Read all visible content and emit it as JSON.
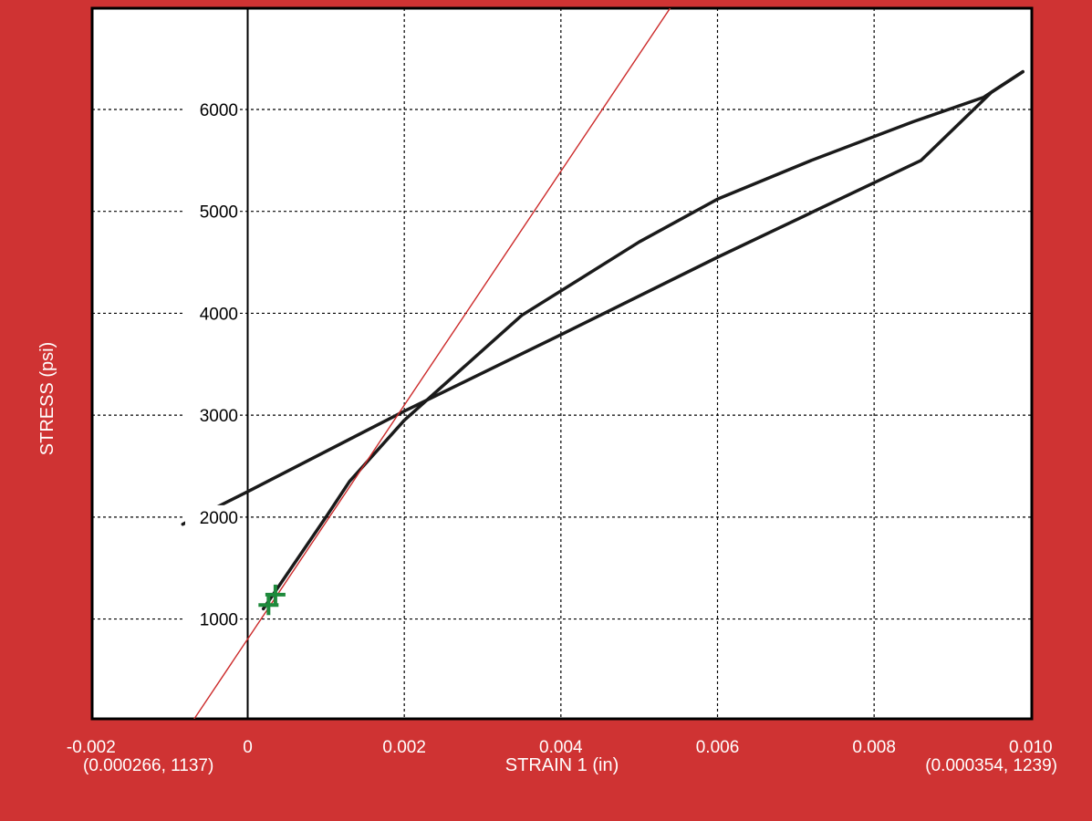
{
  "chart_data": {
    "type": "line",
    "xlabel": "STRAIN 1 (in)",
    "ylabel": "STRESS (psi)",
    "xlim": [
      -0.002,
      0.01
    ],
    "ylim": [
      0,
      7000
    ],
    "x_ticks": [
      -0.002,
      0,
      0.002,
      0.004,
      0.006,
      0.008,
      0.01
    ],
    "x_tick_labels": [
      "-0.002",
      "0",
      "0.002",
      "0.004",
      "0.006",
      "0.008",
      "0.010"
    ],
    "y_ticks": [
      1000,
      2000,
      3000,
      4000,
      5000,
      6000
    ],
    "y_tick_labels": [
      "1000",
      "2000",
      "3000",
      "4000",
      "5000",
      "6000"
    ],
    "grid": true,
    "series": [
      {
        "color": "#1a1a1a",
        "x": [
          0.0002,
          0.001,
          0.0013,
          0.002,
          0.0035,
          0.005,
          0.006,
          0.0072,
          0.0085,
          0.0094,
          0.0099
        ],
        "y": [
          1100,
          2000,
          2350,
          2950,
          3980,
          4700,
          5120,
          5500,
          5880,
          6120,
          6370
        ]
      },
      {
        "color": "#1a1a1a",
        "x": [
          0.0099,
          0.0095,
          0.0093,
          0.0086,
          0.006,
          0.004,
          0.002,
          0.0,
          -0.00083
        ],
        "y": [
          6370,
          6170,
          6020,
          5500,
          4550,
          3790,
          3040,
          2250,
          1930
        ]
      },
      {
        "color": "#cc2a2a",
        "x": [
          -0.0007,
          0.0054
        ],
        "y": [
          0,
          7000
        ]
      }
    ],
    "markers": [
      {
        "x": 0.000266,
        "y": 1137,
        "color": "#1e8a3c"
      },
      {
        "x": 0.000354,
        "y": 1239,
        "color": "#1e8a3c"
      }
    ],
    "annotations": {
      "left_coord": "(0.000266, 1137)",
      "right_coord": "(0.000354, 1239)"
    }
  }
}
